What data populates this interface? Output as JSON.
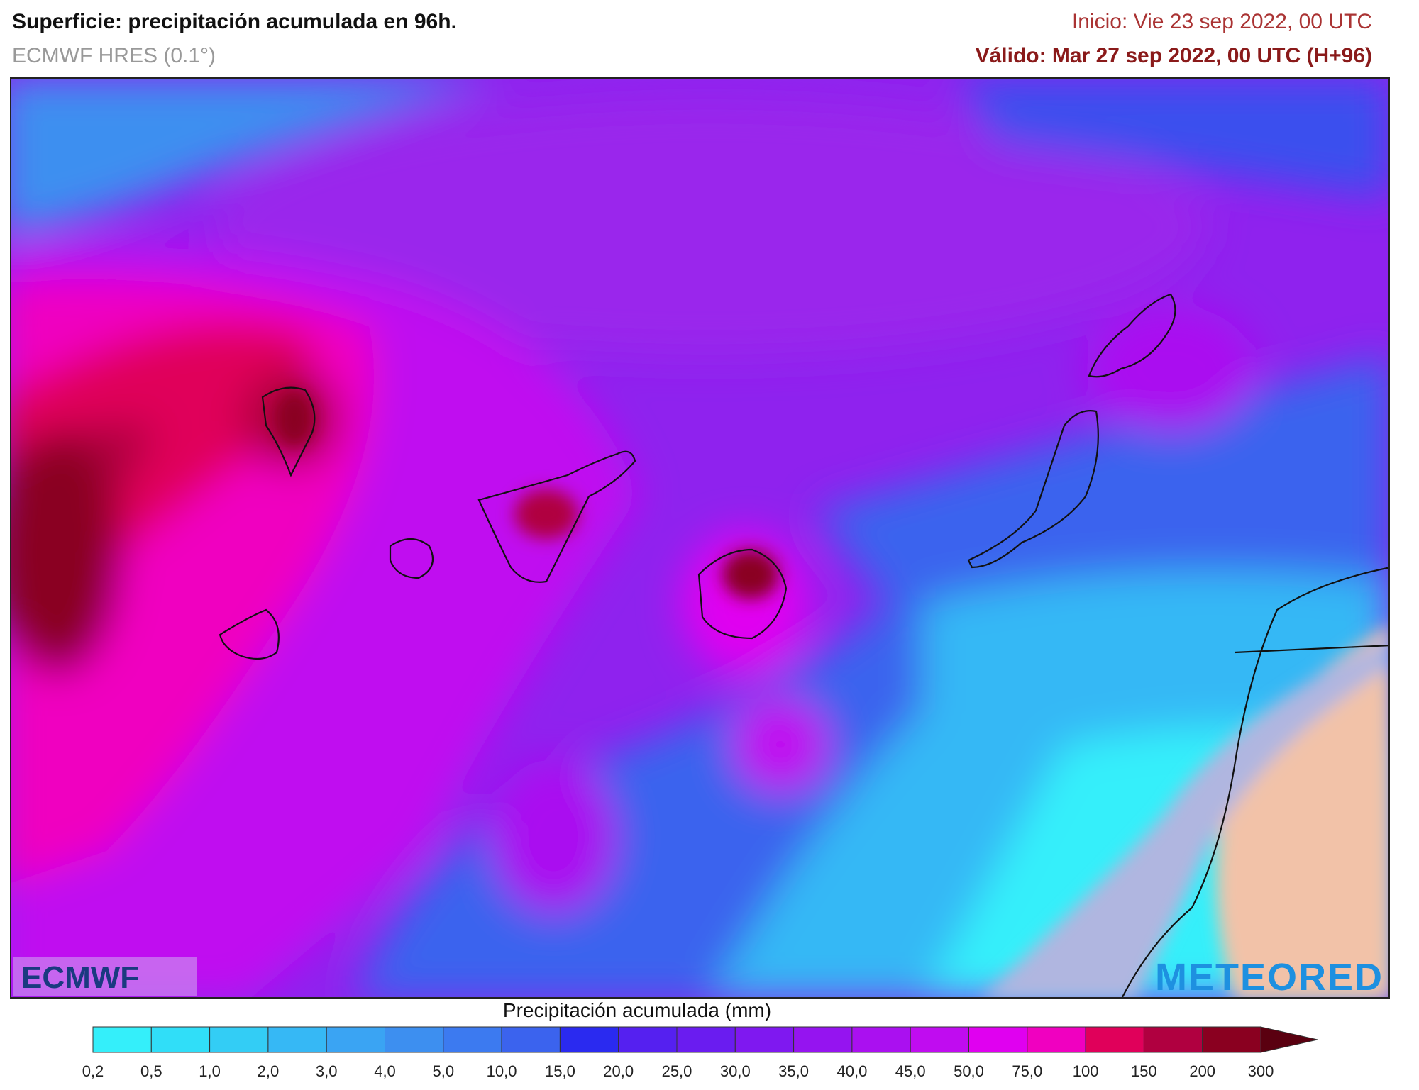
{
  "header": {
    "title": "Superficie: precipitación acumulada en 96h.",
    "model": "ECMWF HRES (0.1°)",
    "init": "Inicio: Vie 23 sep 2022, 00 UTC",
    "valid": "Válido: Mar 27 sep 2022, 00 UTC (H+96)"
  },
  "logos": {
    "left": "ECMWF",
    "right": "METEORED"
  },
  "legend": {
    "title": "Precipitación acumulada (mm)",
    "labels": [
      "0,2",
      "0,5",
      "1,0",
      "2,0",
      "3,0",
      "4,0",
      "5,0",
      "10,0",
      "15,0",
      "20,0",
      "25,0",
      "30,0",
      "35,0",
      "40,0",
      "45,0",
      "50,0",
      "75,0",
      "100",
      "150",
      "200",
      "300"
    ],
    "colors": [
      "#34effa",
      "#30def8",
      "#33cdf5",
      "#36b8f5",
      "#3aa4f3",
      "#3d8ff0",
      "#3c7af0",
      "#3b63ee",
      "#2a2af0",
      "#5520f0",
      "#6a1cf0",
      "#7f18f0",
      "#9514f0",
      "#aa10f0",
      "#c00cf0",
      "#e000f0",
      "#f000c0",
      "#e0005a",
      "#b00040",
      "#8a0020",
      "#5a0010"
    ]
  }
}
